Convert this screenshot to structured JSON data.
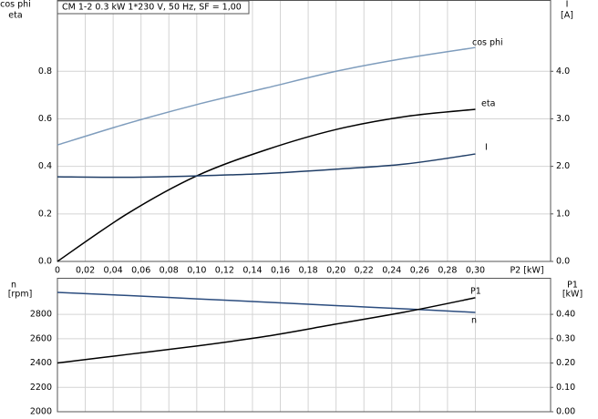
{
  "chart_data": [
    {
      "type": "line",
      "title": "CM 1-2   0.3 kW   1*230 V, 50 Hz, SF = 1,00",
      "ylabel": [
        "cos phi",
        "eta"
      ],
      "y2label": [
        "I",
        "[A]"
      ],
      "xlabel": "P2 [kW]",
      "x": [
        0,
        0.05,
        0.1,
        0.15,
        0.2,
        0.25,
        0.3
      ],
      "series": [
        {
          "name": "cos phi",
          "color": "#7f9dbd",
          "values": [
            0.49,
            0.58,
            0.66,
            0.73,
            0.8,
            0.855,
            0.9
          ]
        },
        {
          "name": "eta",
          "color": "#000000",
          "values": [
            0,
            0.2,
            0.36,
            0.47,
            0.555,
            0.61,
            0.64
          ]
        },
        {
          "name": "I",
          "color": "#1f3d66",
          "axis": "y2",
          "values": [
            1.78,
            1.77,
            1.8,
            1.85,
            1.94,
            2.05,
            2.26
          ]
        }
      ],
      "xlim": [
        0,
        0.354
      ],
      "xticks": [
        0,
        {
          "value": 0.02,
          "label": "0,02"
        },
        {
          "value": 0.04,
          "label": "0,04"
        },
        {
          "value": 0.06,
          "label": "0,06"
        },
        {
          "value": 0.08,
          "label": "0,08"
        },
        {
          "value": 0.1,
          "label": "0,10"
        },
        {
          "value": 0.12,
          "label": "0,12"
        },
        {
          "value": 0.14,
          "label": "0,14"
        },
        {
          "value": 0.16,
          "label": "0,16"
        },
        {
          "value": 0.18,
          "label": "0,18"
        },
        {
          "value": 0.2,
          "label": "0,20"
        },
        {
          "value": 0.22,
          "label": "0,22"
        },
        {
          "value": 0.24,
          "label": "0,24"
        },
        {
          "value": 0.26,
          "label": "0,26"
        },
        {
          "value": 0.28,
          "label": "0,28"
        },
        {
          "value": 0.3,
          "label": "0,30"
        }
      ],
      "ylim": [
        0,
        1.1
      ],
      "yticks": [
        {
          "value": 0,
          "label": "0.0"
        },
        0.2,
        0.4,
        0.6,
        0.8
      ],
      "y2lim": [
        0,
        5.5
      ],
      "y2ticks": [
        {
          "value": 0,
          "label": "0.0"
        },
        {
          "value": 1,
          "label": "1.0"
        },
        {
          "value": 2,
          "label": "2.0"
        },
        {
          "value": 3,
          "label": "3.0"
        },
        {
          "value": 4,
          "label": "4.0"
        }
      ],
      "grid": true
    },
    {
      "type": "line",
      "ylabel": [
        "n",
        "[rpm]"
      ],
      "y2label": [
        "P1",
        "[kW]"
      ],
      "x": [
        0,
        0.05,
        0.1,
        0.15,
        0.2,
        0.25,
        0.3
      ],
      "series": [
        {
          "name": "n",
          "color": "#2b4c7e",
          "values": [
            2980,
            2955,
            2927,
            2900,
            2872,
            2845,
            2816
          ]
        },
        {
          "name": "P1",
          "color": "#000000",
          "axis": "y2",
          "values": [
            0.2,
            0.235,
            0.27,
            0.31,
            0.36,
            0.41,
            0.468
          ]
        }
      ],
      "xlim": [
        0,
        0.354
      ],
      "xticks": [
        0,
        0.02,
        0.04,
        0.06,
        0.08,
        0.1,
        0.12,
        0.14,
        0.16,
        0.18,
        0.2,
        0.22,
        0.24,
        0.26,
        0.28,
        0.3
      ],
      "ylim": [
        2000,
        3100
      ],
      "yticks": [
        2000,
        2200,
        2400,
        2600,
        2800
      ],
      "y2lim": [
        0,
        0.55
      ],
      "y2ticks": [
        {
          "value": 0,
          "label": "0.00"
        },
        {
          "value": 0.1,
          "label": "0.10"
        },
        {
          "value": 0.2,
          "label": "0.20"
        },
        {
          "value": 0.3,
          "label": "0.30"
        },
        {
          "value": 0.4,
          "label": "0.40"
        }
      ],
      "grid": true
    }
  ]
}
